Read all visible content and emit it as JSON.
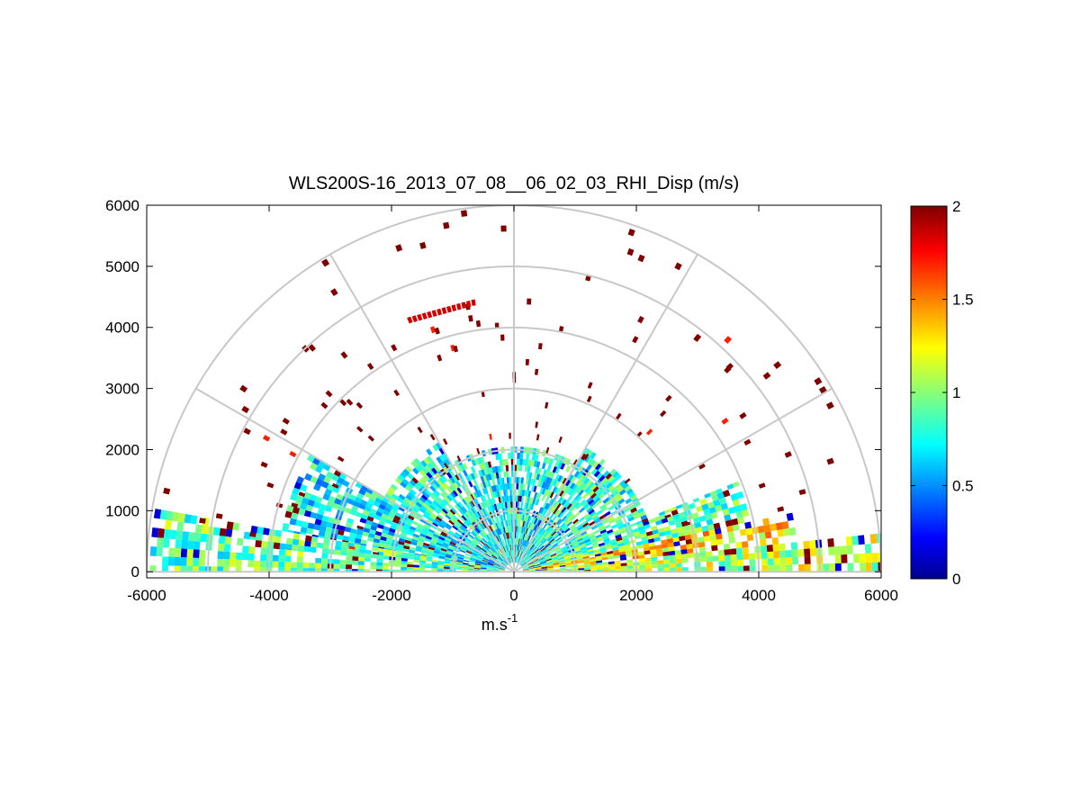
{
  "chart_data": {
    "type": "heatmap",
    "subtype": "polar-rhi",
    "title": "WLS200S-16_2013_07_08__06_02_03_RHI_Disp (m/s)",
    "xlabel": "m.s",
    "xlabel_sup": "-1",
    "ylabel": "",
    "xlim": [
      -6000,
      6000
    ],
    "ylim": [
      -100,
      6000
    ],
    "x_ticks": [
      -6000,
      -4000,
      -2000,
      0,
      2000,
      4000,
      6000
    ],
    "x_tick_labels": [
      "-6000",
      "-4000",
      "-2000",
      "0",
      "2000",
      "4000",
      "6000"
    ],
    "y_ticks": [
      0,
      1000,
      2000,
      3000,
      4000,
      5000,
      6000
    ],
    "y_tick_labels": [
      "0",
      "1000",
      "2000",
      "3000",
      "4000",
      "5000",
      "6000"
    ],
    "polar_grid": {
      "range_rings_m": [
        1000,
        2000,
        3000,
        4000,
        5000,
        6000
      ],
      "spoke_angles_deg": [
        0,
        30,
        60,
        90,
        120,
        150,
        180
      ]
    },
    "colorbar": {
      "colormap": "jet",
      "min": 0,
      "max": 2,
      "ticks": [
        0,
        0.5,
        1,
        1.5,
        2
      ],
      "tick_labels": [
        "0",
        "0.5",
        "1",
        "1.5",
        "2"
      ]
    },
    "colormap_stops": [
      "#00008f",
      "#0000ff",
      "#00ffff",
      "#ffff00",
      "#ff0000",
      "#800000"
    ],
    "sectors": [
      {
        "az_from": 0,
        "az_to": 6,
        "r_from": 150,
        "r_to": 6000,
        "mean_value": 1.1
      },
      {
        "az_from": 6,
        "az_to": 12,
        "r_from": 150,
        "r_to": 4600,
        "mean_value": 1.3
      },
      {
        "az_from": 12,
        "az_to": 22,
        "r_from": 150,
        "r_to": 3900,
        "mean_value": 0.9
      },
      {
        "az_from": 22,
        "az_to": 60,
        "r_from": 150,
        "r_to": 2300,
        "mean_value": 0.8
      },
      {
        "az_from": 60,
        "az_to": 120,
        "r_from": 150,
        "r_to": 2000,
        "mean_value": 0.75
      },
      {
        "az_from": 120,
        "az_to": 150,
        "r_from": 150,
        "r_to": 2400,
        "mean_value": 0.8
      },
      {
        "az_from": 150,
        "az_to": 170,
        "r_from": 150,
        "r_to": 3800,
        "mean_value": 0.7
      },
      {
        "az_from": 170,
        "az_to": 180,
        "r_from": 150,
        "r_to": 5900,
        "mean_value": 0.9
      }
    ],
    "isolated_cells_note": "sparse high-dispersion (~2 m/s) returns scattered between 2000 and 6000 m range"
  }
}
